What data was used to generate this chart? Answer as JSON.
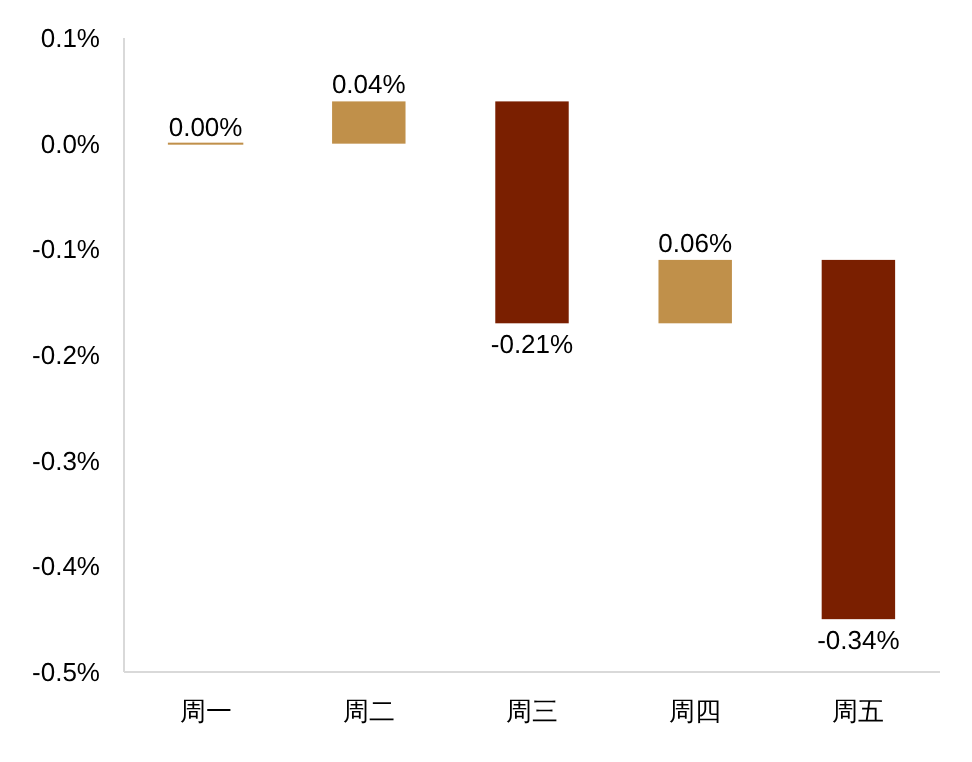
{
  "chart_data": {
    "type": "bar",
    "categories": [
      "周一",
      "周二",
      "周三",
      "周四",
      "周五"
    ],
    "values": [
      0.0,
      0.04,
      -0.21,
      0.06,
      -0.34
    ],
    "base": [
      0,
      0,
      0.04,
      -0.17,
      -0.11
    ],
    "colors": [
      "#c0904a",
      "#c0904a",
      "#7a1f00",
      "#c0904a",
      "#7a1f00"
    ],
    "value_labels": [
      "0.00%",
      "0.04%",
      "-0.21%",
      "0.06%",
      "-0.34%"
    ],
    "ylim": [
      -0.5,
      0.1
    ],
    "yticks": [
      {
        "value": 0.1,
        "label": "0.1%"
      },
      {
        "value": 0,
        "label": "0.0%"
      },
      {
        "value": -0.1,
        "label": "-0.1%"
      },
      {
        "value": -0.2,
        "label": "-0.2%"
      },
      {
        "value": -0.3,
        "label": "-0.3%"
      },
      {
        "value": -0.4,
        "label": "-0.4%"
      },
      {
        "value": -0.5,
        "label": "-0.5%"
      }
    ],
    "grid": false
  }
}
